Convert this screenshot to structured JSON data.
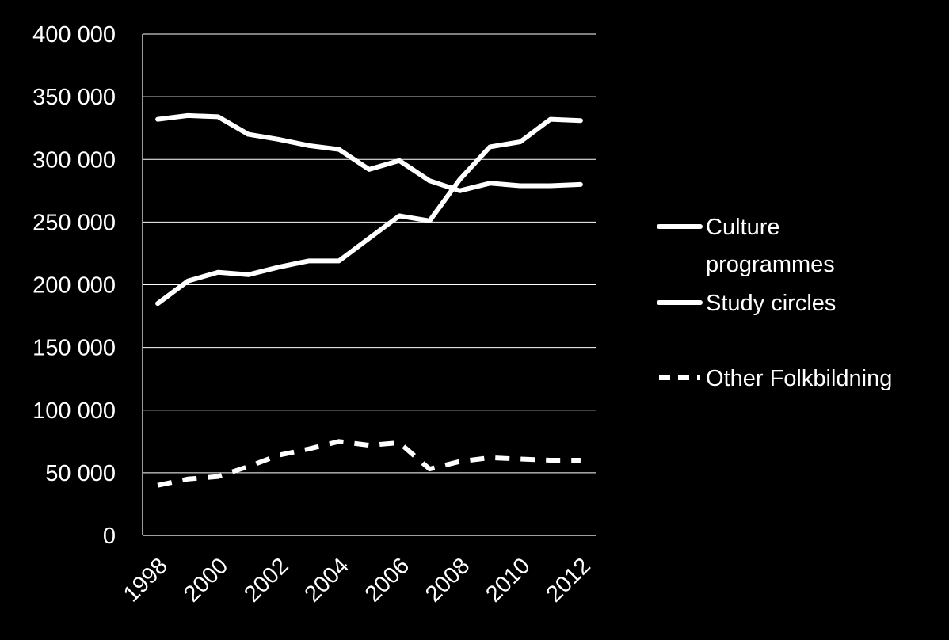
{
  "chart_data": {
    "type": "line",
    "x": [
      1998,
      1999,
      2000,
      2001,
      2002,
      2003,
      2004,
      2005,
      2006,
      2007,
      2008,
      2009,
      2010,
      2011,
      2012
    ],
    "x_tick_labels": [
      "1998",
      "2000",
      "2002",
      "2004",
      "2006",
      "2008",
      "2010",
      "2012"
    ],
    "y_tick_labels": [
      "0",
      "50 000",
      "100 000",
      "150 000",
      "200 000",
      "250 000",
      "300 000",
      "350 000",
      "400 000"
    ],
    "ylim": [
      0,
      400000
    ],
    "grid": true,
    "legend_position": "right",
    "series": [
      {
        "name": "Culture programmes",
        "style": "solid",
        "values": [
          185000,
          203000,
          210000,
          208000,
          214000,
          219000,
          219000,
          237000,
          255000,
          251000,
          284000,
          310000,
          314000,
          332000,
          331000
        ]
      },
      {
        "name": "Study circles",
        "style": "solid",
        "values": [
          332000,
          335000,
          334000,
          320000,
          316000,
          311000,
          308000,
          292000,
          299000,
          283000,
          275000,
          281000,
          279000,
          279000,
          280000
        ]
      },
      {
        "name": "Other Folkbildning",
        "style": "dashed",
        "values": [
          40000,
          45000,
          47000,
          55000,
          64000,
          69000,
          75000,
          72000,
          74000,
          53000,
          59000,
          62000,
          61000,
          60000,
          60000
        ]
      }
    ],
    "legend_lines": [
      [
        "Culture",
        "programmes"
      ],
      [
        "Study circles"
      ],
      [
        "Other Folkbildning"
      ]
    ]
  },
  "colors": {
    "background": "#000000",
    "foreground": "#ffffff"
  }
}
